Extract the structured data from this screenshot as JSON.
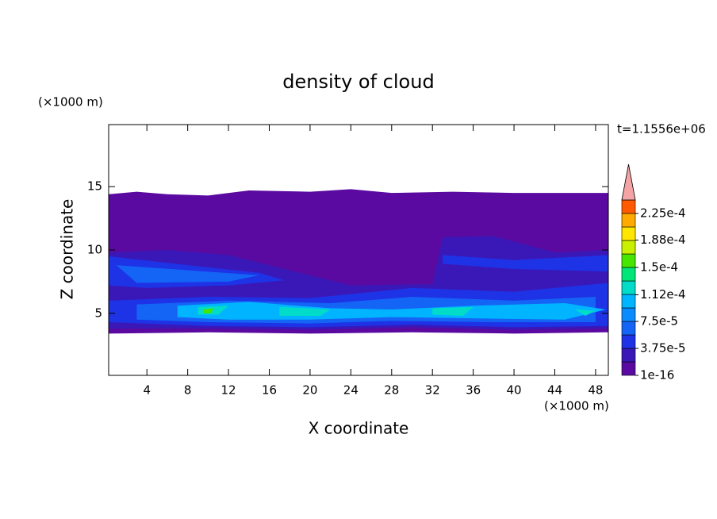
{
  "chart_data": {
    "type": "contour",
    "title": "density of cloud",
    "xlabel": "X coordinate",
    "ylabel": "Z coordinate",
    "x_unit": "(×1000 m)",
    "y_unit": "(×1000 m)",
    "annotation": "t=1.1556e+06",
    "xlim": [
      0.25,
      49.25
    ],
    "ylim": [
      0.1,
      19.9
    ],
    "xticks": [
      4,
      8,
      12,
      16,
      20,
      24,
      28,
      32,
      36,
      40,
      44,
      48
    ],
    "yticks": [
      5,
      10,
      15
    ],
    "colorbar": {
      "step": 1.875e-05,
      "ticks": [
        1e-16,
        {
          "value": 3.75e-05,
          "label": "3.75e-5"
        },
        {
          "value": 7.5e-05,
          "label": "7.5e-5"
        },
        {
          "value": 0.000112,
          "label": "1.12e-4"
        },
        {
          "value": 0.00015,
          "label": "1.5e-4"
        },
        {
          "value": 0.000188,
          "label": "1.88e-4"
        },
        {
          "value": 0.000225,
          "label": "2.25e-4"
        }
      ],
      "colors": [
        "#5a0aa0",
        "#3a18b8",
        "#1e32e6",
        "#1464f5",
        "#0a8cff",
        "#00b4ff",
        "#00dcc8",
        "#00e678",
        "#46e600",
        "#c8f000",
        "#ffe600",
        "#ffaa00",
        "#ff5a00"
      ],
      "extend_color": "#f4a4a4"
    }
  }
}
